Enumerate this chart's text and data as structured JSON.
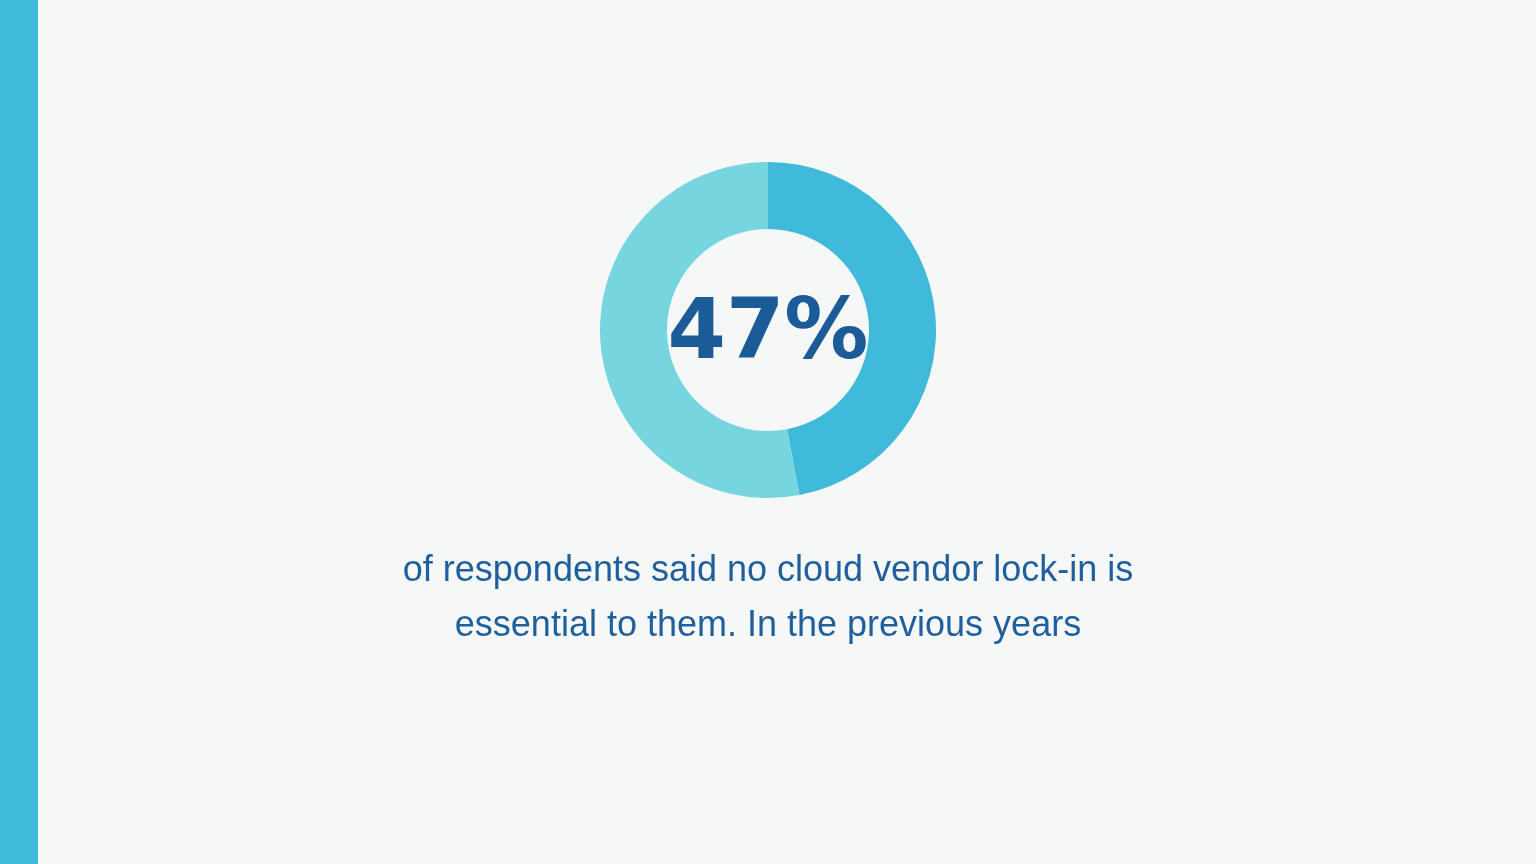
{
  "chart_data": {
    "type": "donut",
    "categories": [
      null,
      null
    ],
    "values": [
      47,
      53
    ],
    "colors": [
      "#3fbadb",
      "#77d5e0"
    ],
    "value_labels": [
      "47%",
      null
    ],
    "annotations": [
      "of respondents said no cloud vendor lock-in is essential to them. In the previous years"
    ]
  }
}
